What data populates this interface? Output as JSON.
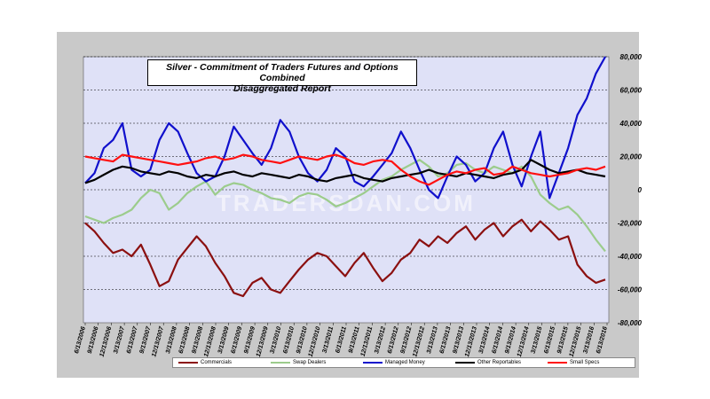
{
  "chart_data": {
    "type": "line",
    "title": "Silver - Commitment of Traders Futures and Options Combined",
    "subtitle": "Disaggregated  Report",
    "ylim": [
      -80000,
      80000
    ],
    "y_ticks": [
      -80000,
      -60000,
      -40000,
      -20000,
      0,
      20000,
      40000,
      60000,
      80000
    ],
    "y_tick_labels": [
      "-80,000",
      "-60,000",
      "-40,000",
      "-20,000",
      "0",
      "20,000",
      "40,000",
      "60,000",
      "80,000"
    ],
    "x_tick_labels": [
      "6/13/2006",
      "9/13/2006",
      "12/13/2006",
      "3/13/2007",
      "6/13/2007",
      "9/13/2007",
      "12/13/2007",
      "3/13/2008",
      "6/13/2008",
      "9/13/2008",
      "12/13/2008",
      "3/13/2009",
      "6/13/2009",
      "9/13/2009",
      "12/13/2009",
      "3/13/2010",
      "6/13/2010",
      "9/13/2010",
      "12/13/2010",
      "3/13/2011",
      "6/13/2011",
      "9/13/2011",
      "12/13/2011",
      "3/13/2012",
      "6/13/2012",
      "9/13/2012",
      "12/13/2012",
      "3/13/2013",
      "6/13/2013",
      "9/13/2013",
      "12/13/2013",
      "3/13/2014",
      "6/13/2014",
      "9/13/2014",
      "12/13/2014",
      "3/13/2015",
      "6/13/2015",
      "9/13/2015",
      "12/13/2015",
      "3/13/2016",
      "6/13/2016"
    ],
    "grid": true,
    "legend_position": "bottom",
    "watermark": "TRADERSDAN.COM",
    "series": [
      {
        "name": "Commercials",
        "color": "#8b1010",
        "values": [
          -20000,
          -25000,
          -32000,
          -38000,
          -36000,
          -40000,
          -33000,
          -45000,
          -58000,
          -55000,
          -42000,
          -35000,
          -28000,
          -34000,
          -44000,
          -52000,
          -62000,
          -64000,
          -56000,
          -53000,
          -60000,
          -62000,
          -55000,
          -48000,
          -42000,
          -38000,
          -40000,
          -46000,
          -52000,
          -44000,
          -38000,
          -47000,
          -55000,
          -50000,
          -42000,
          -38000,
          -30000,
          -34000,
          -28000,
          -32000,
          -26000,
          -22000,
          -30000,
          -24000,
          -20000,
          -28000,
          -22000,
          -18000,
          -25000,
          -19000,
          -24000,
          -30000,
          -28000,
          -45000,
          -52000,
          -56000,
          -54000
        ]
      },
      {
        "name": "Swap Dealers",
        "color": "#9ccc8c",
        "values": [
          -16000,
          -18000,
          -20000,
          -17000,
          -15000,
          -12000,
          -5000,
          0,
          -2000,
          -12000,
          -8000,
          -2000,
          2000,
          5000,
          -3000,
          2000,
          4000,
          3000,
          0,
          -2000,
          -5000,
          -6000,
          -8000,
          -4000,
          -2000,
          -3000,
          -6000,
          -10000,
          -8000,
          -5000,
          -2000,
          2000,
          6000,
          8000,
          12000,
          15000,
          18000,
          14000,
          8000,
          10000,
          15000,
          16000,
          12000,
          10000,
          14000,
          12000,
          10000,
          14000,
          8000,
          -3000,
          -8000,
          -12000,
          -10000,
          -15000,
          -22000,
          -30000,
          -37000
        ]
      },
      {
        "name": "Managed Money",
        "color": "#1010cc",
        "values": [
          4000,
          10000,
          25000,
          30000,
          40000,
          12000,
          8000,
          12000,
          30000,
          40000,
          35000,
          22000,
          10000,
          5000,
          8000,
          20000,
          38000,
          30000,
          22000,
          15000,
          25000,
          42000,
          35000,
          20000,
          10000,
          5000,
          12000,
          25000,
          20000,
          5000,
          2000,
          8000,
          15000,
          22000,
          35000,
          25000,
          12000,
          0,
          -5000,
          8000,
          20000,
          15000,
          5000,
          10000,
          25000,
          35000,
          15000,
          2000,
          20000,
          35000,
          -5000,
          10000,
          25000,
          45000,
          55000,
          70000,
          80000
        ]
      },
      {
        "name": "Other Reportables",
        "color": "#000000",
        "values": [
          4000,
          6000,
          9000,
          12000,
          14000,
          13000,
          11000,
          10000,
          9000,
          11000,
          10000,
          8000,
          7000,
          9000,
          8000,
          10000,
          11000,
          9000,
          8000,
          10000,
          9000,
          8000,
          7000,
          9000,
          8000,
          6000,
          5000,
          7000,
          8000,
          9000,
          7000,
          6000,
          5000,
          7000,
          8000,
          9000,
          10000,
          12000,
          10000,
          9000,
          8000,
          10000,
          9000,
          8000,
          7000,
          9000,
          10000,
          12000,
          18000,
          15000,
          12000,
          10000,
          11000,
          12000,
          10000,
          9000,
          8000
        ]
      },
      {
        "name": "Small Specs",
        "color": "#ff1010",
        "values": [
          20000,
          19000,
          18000,
          17000,
          21000,
          20000,
          19000,
          18000,
          17000,
          16000,
          15000,
          16000,
          17000,
          19000,
          20000,
          18000,
          19000,
          21000,
          20000,
          18000,
          17000,
          16000,
          18000,
          20000,
          19000,
          18000,
          20000,
          21000,
          19000,
          16000,
          15000,
          17000,
          18000,
          17000,
          12000,
          8000,
          5000,
          3000,
          6000,
          9000,
          11000,
          10000,
          12000,
          13000,
          9000,
          10000,
          14000,
          12000,
          10000,
          9000,
          8000,
          9000,
          10000,
          12000,
          13000,
          12000,
          14000
        ]
      }
    ]
  }
}
